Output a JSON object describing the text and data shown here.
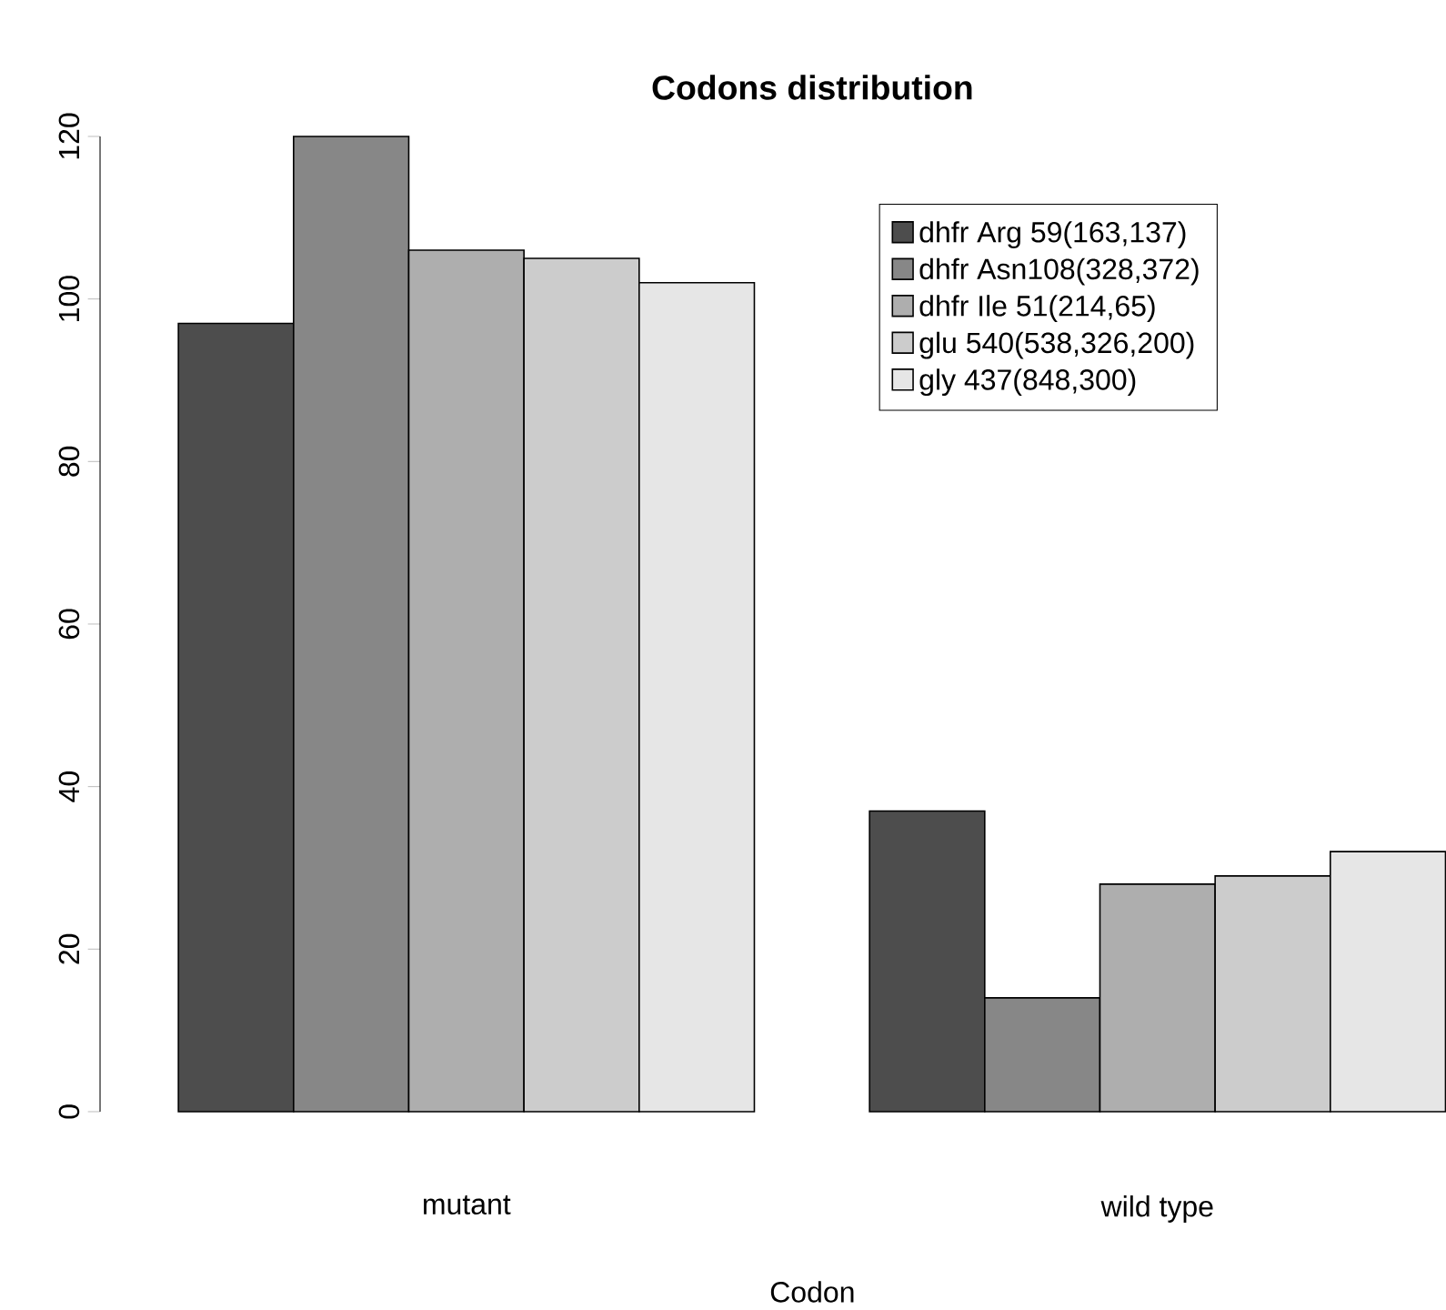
{
  "chart_data": {
    "type": "bar",
    "title": "Codons distribution",
    "xlabel": "Codon",
    "categories": [
      "mutant",
      "wild type"
    ],
    "series": [
      {
        "name": "dhfr Arg 59(163,137)",
        "color": "#4d4d4d",
        "values": [
          97,
          37
        ]
      },
      {
        "name": "dhfr Asn108(328,372)",
        "color": "#878787",
        "values": [
          120,
          14
        ]
      },
      {
        "name": "dhfr Ile 51(214,65)",
        "color": "#aeaeae",
        "values": [
          106,
          28
        ]
      },
      {
        "name": "glu 540(538,326,200)",
        "color": "#cccccc",
        "values": [
          105,
          29
        ]
      },
      {
        "name": "gly 437(848,300)",
        "color": "#e6e6e6",
        "values": [
          102,
          32
        ]
      }
    ],
    "ylim": [
      0,
      120
    ],
    "yticks": [
      0,
      20,
      40,
      60,
      80,
      100,
      120
    ],
    "legend": "top right",
    "grid": false
  }
}
